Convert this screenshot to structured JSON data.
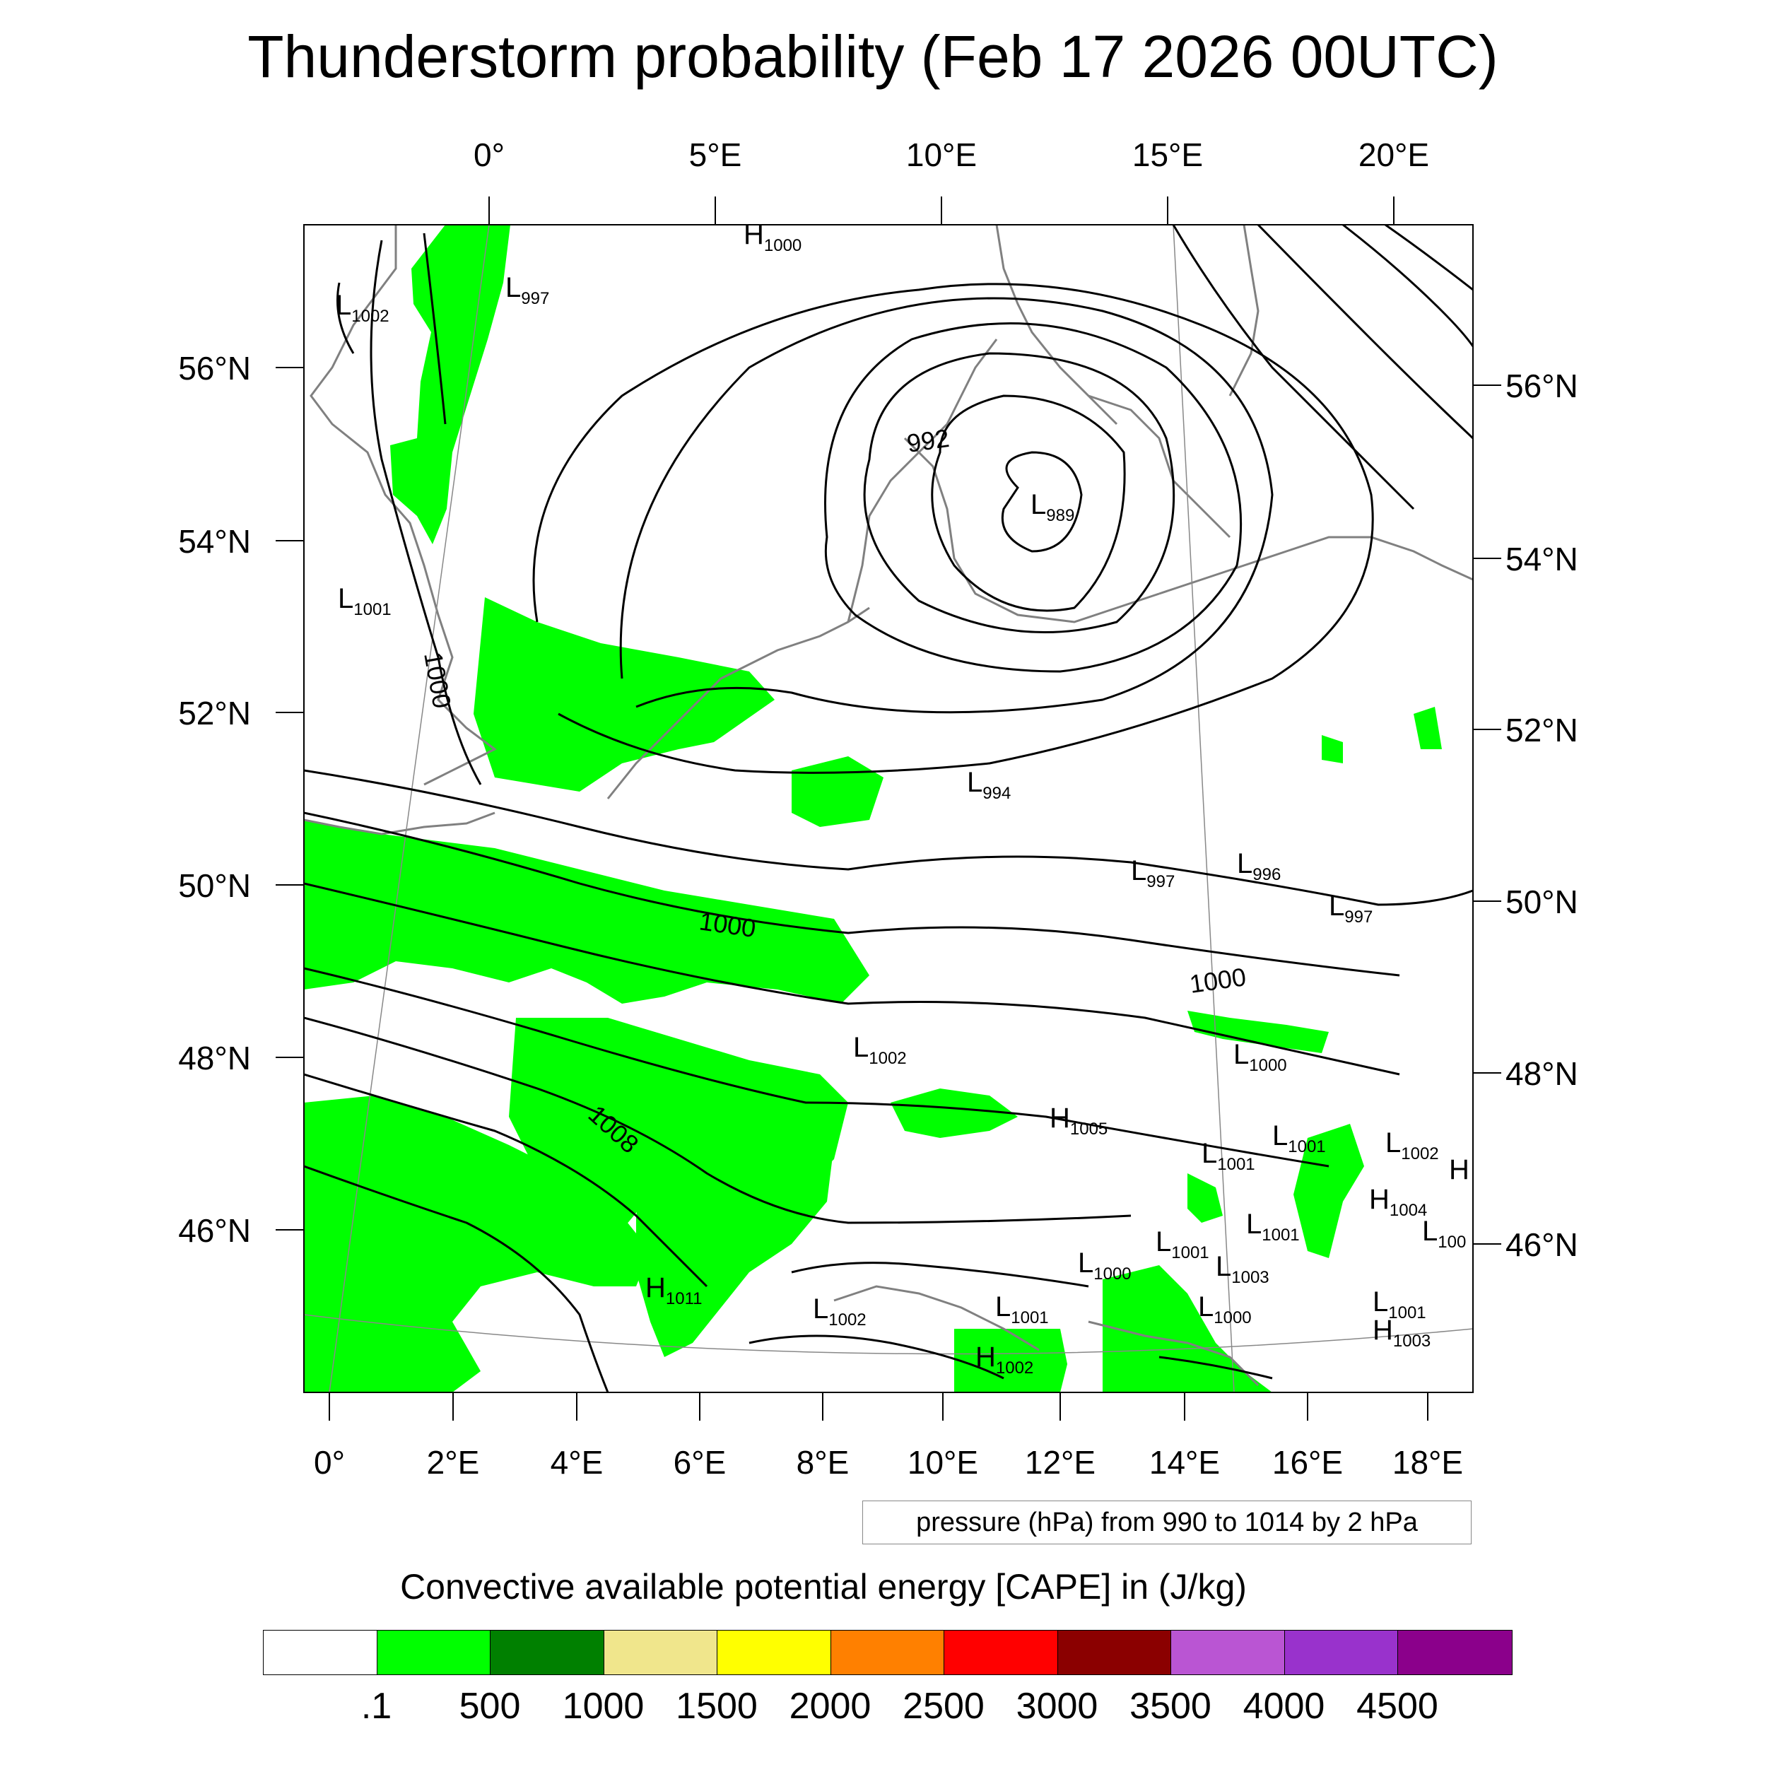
{
  "title": "Thunderstorm probability (Feb 17 2026 00UTC)",
  "axes": {
    "top_lon_labels": [
      "0°",
      "5°E",
      "10°E",
      "15°E",
      "20°E"
    ],
    "bottom_lon_labels": [
      "0°",
      "2°E",
      "4°E",
      "6°E",
      "8°E",
      "10°E",
      "12°E",
      "14°E",
      "16°E",
      "18°E"
    ],
    "left_lat_labels": [
      "56°N",
      "54°N",
      "52°N",
      "50°N",
      "48°N",
      "46°N"
    ],
    "right_lat_labels": [
      "56°N",
      "54°N",
      "52°N",
      "50°N",
      "48°N",
      "46°N"
    ]
  },
  "pressure_centers": [
    {
      "type": "H",
      "value": "1000"
    },
    {
      "type": "L",
      "value": "1002"
    },
    {
      "type": "L",
      "value": "997"
    },
    {
      "type": "L",
      "value": "1001"
    },
    {
      "type": "L",
      "value": "989"
    },
    {
      "type": "L",
      "value": "994"
    },
    {
      "type": "L",
      "value": "997"
    },
    {
      "type": "L",
      "value": "996"
    },
    {
      "type": "L",
      "value": "997"
    },
    {
      "type": "L",
      "value": "1002"
    },
    {
      "type": "L",
      "value": "1000"
    },
    {
      "type": "H",
      "value": "1005"
    },
    {
      "type": "L",
      "value": "1001"
    },
    {
      "type": "L",
      "value": "1001"
    },
    {
      "type": "L",
      "value": "1002"
    },
    {
      "type": "H",
      "value": ""
    },
    {
      "type": "H",
      "value": "1004"
    },
    {
      "type": "L",
      "value": "1001"
    },
    {
      "type": "L",
      "value": "100"
    },
    {
      "type": "L",
      "value": "1001"
    },
    {
      "type": "L",
      "value": "1000"
    },
    {
      "type": "L",
      "value": "1003"
    },
    {
      "type": "H",
      "value": "1011"
    },
    {
      "type": "L",
      "value": "1002"
    },
    {
      "type": "L",
      "value": "1001"
    },
    {
      "type": "L",
      "value": "1000"
    },
    {
      "type": "L",
      "value": "1001"
    },
    {
      "type": "H",
      "value": "1003"
    },
    {
      "type": "H",
      "value": "1002"
    }
  ],
  "contour_labels": [
    "992",
    "1000",
    "1000",
    "1000",
    "1008"
  ],
  "contour_caption": "pressure (hPa) from 990 to 1014 by 2 hPa",
  "colorbar": {
    "title": "Convective available potential energy [CAPE] in (J/kg)",
    "colors": [
      "#ffffff",
      "#00ff00",
      "#008000",
      "#f0e68c",
      "#ffff00",
      "#ff8000",
      "#ff0000",
      "#8b0000",
      "#ba55d3",
      "#9932cc",
      "#8b008b"
    ],
    "labels": [
      ".1",
      "500",
      "1000",
      "1500",
      "2000",
      "2500",
      "3000",
      "3500",
      "4000",
      "4500"
    ]
  },
  "colors": {
    "cape_fill": "#00ff00",
    "coastline": "#808080",
    "isobar": "#000000"
  }
}
